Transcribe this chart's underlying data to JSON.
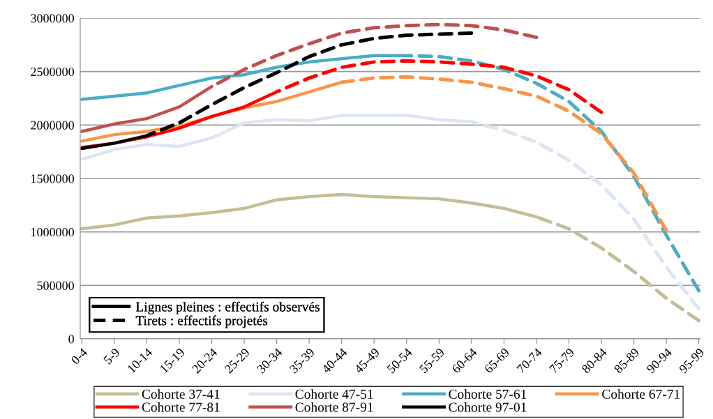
{
  "chart_data": {
    "type": "line",
    "categories": [
      "0-4",
      "5-9",
      "10-14",
      "15-19",
      "20-24",
      "25-29",
      "30-34",
      "35-39",
      "40-44",
      "45-49",
      "50-54",
      "55-59",
      "60-64",
      "65-69",
      "70-74",
      "75-79",
      "80-84",
      "85-89",
      "90-94",
      "95-99"
    ],
    "ylim": [
      0,
      3000000
    ],
    "yticks": [
      0,
      500000,
      1000000,
      1500000,
      2000000,
      2500000,
      3000000
    ],
    "grid": "y",
    "legend": "bottom",
    "annotations": [
      "Lignes pleines : effectifs observés",
      "Tirets : effectifs projetés"
    ],
    "series": [
      {
        "name": "Cohorte 37-41",
        "color": "#c4bd97",
        "line_style": "solid",
        "values": [
          1030000,
          1065000,
          1130000,
          1150000,
          1180000,
          1220000,
          1300000,
          1330000,
          1350000,
          1330000,
          1320000,
          1310000,
          1270000,
          1220000,
          1140000,
          null,
          null,
          null,
          null,
          null
        ]
      },
      {
        "color": "#c4bd97",
        "line_style": "dashed",
        "values": [
          null,
          null,
          null,
          null,
          null,
          null,
          null,
          null,
          null,
          null,
          null,
          null,
          null,
          null,
          1140000,
          1030000,
          850000,
          630000,
          380000,
          170000
        ]
      },
      {
        "name": "Cohorte 47-51",
        "color": "#dce6f2",
        "line_style": "solid",
        "values": [
          1680000,
          1770000,
          1820000,
          1800000,
          1880000,
          2020000,
          2050000,
          2040000,
          2090000,
          2090000,
          2090000,
          2050000,
          2030000,
          null,
          null,
          null,
          null,
          null,
          null,
          null
        ]
      },
      {
        "color": "#dce6f2",
        "line_style": "dashed",
        "values": [
          null,
          null,
          null,
          null,
          null,
          null,
          null,
          null,
          null,
          null,
          null,
          null,
          2030000,
          1950000,
          1840000,
          1670000,
          1440000,
          1120000,
          670000,
          280000
        ]
      },
      {
        "name": "Cohorte 57-61",
        "color": "#4bacc6",
        "line_style": "solid",
        "values": [
          2240000,
          2270000,
          2300000,
          2370000,
          2440000,
          2470000,
          2540000,
          2590000,
          2620000,
          2650000,
          2650000,
          null,
          null,
          null,
          null,
          null,
          null,
          null,
          null,
          null
        ]
      },
      {
        "color": "#4bacc6",
        "line_style": "dashed",
        "values": [
          null,
          null,
          null,
          null,
          null,
          null,
          null,
          null,
          null,
          null,
          2650000,
          2640000,
          2600000,
          2520000,
          2390000,
          2220000,
          1940000,
          1520000,
          970000,
          450000
        ]
      },
      {
        "name": "Cohorte 67-71",
        "color": "#f79646",
        "line_style": "solid",
        "values": [
          1850000,
          1910000,
          1940000,
          1990000,
          2080000,
          2160000,
          2220000,
          2310000,
          2400000,
          null,
          null,
          null,
          null,
          null,
          null,
          null,
          null,
          null,
          null,
          null
        ]
      },
      {
        "color": "#f79646",
        "line_style": "dashed",
        "values": [
          null,
          null,
          null,
          null,
          null,
          null,
          null,
          null,
          2400000,
          2440000,
          2450000,
          2430000,
          2400000,
          2340000,
          2270000,
          2130000,
          1920000,
          1550000,
          1010000,
          null
        ]
      },
      {
        "name": "Cohorte 77-81",
        "color": "#ff0000",
        "line_style": "solid",
        "values": [
          1790000,
          1830000,
          1890000,
          1970000,
          2080000,
          2170000,
          2310000,
          null,
          null,
          null,
          null,
          null,
          null,
          null,
          null,
          null,
          null,
          null,
          null,
          null
        ]
      },
      {
        "color": "#ff0000",
        "line_style": "dashed",
        "values": [
          null,
          null,
          null,
          null,
          null,
          null,
          2310000,
          2440000,
          2540000,
          2590000,
          2600000,
          2590000,
          2570000,
          2540000,
          2460000,
          2330000,
          2120000,
          null,
          null,
          null
        ]
      },
      {
        "name": "Cohorte 87-91",
        "color": "#c0504d",
        "line_style": "solid",
        "values": [
          1940000,
          2010000,
          2060000,
          2170000,
          2360000,
          null,
          null,
          null,
          null,
          null,
          null,
          null,
          null,
          null,
          null,
          null,
          null,
          null,
          null,
          null
        ]
      },
      {
        "color": "#c0504d",
        "line_style": "dashed",
        "values": [
          null,
          null,
          null,
          null,
          2360000,
          2520000,
          2650000,
          2760000,
          2860000,
          2910000,
          2930000,
          2940000,
          2930000,
          2890000,
          2820000,
          null,
          null,
          null,
          null,
          null
        ]
      },
      {
        "name": "Cohorte 97-01",
        "color": "#000000",
        "line_style": "solid",
        "values": [
          1780000,
          1830000,
          1900000,
          null,
          null,
          null,
          null,
          null,
          null,
          null,
          null,
          null,
          null,
          null,
          null,
          null,
          null,
          null,
          null,
          null
        ]
      },
      {
        "color": "#000000",
        "line_style": "dashed",
        "values": [
          null,
          null,
          1900000,
          2020000,
          2190000,
          2350000,
          2490000,
          2640000,
          2750000,
          2810000,
          2840000,
          2850000,
          2860000,
          null,
          null,
          null,
          null,
          null,
          null,
          null
        ]
      }
    ]
  }
}
